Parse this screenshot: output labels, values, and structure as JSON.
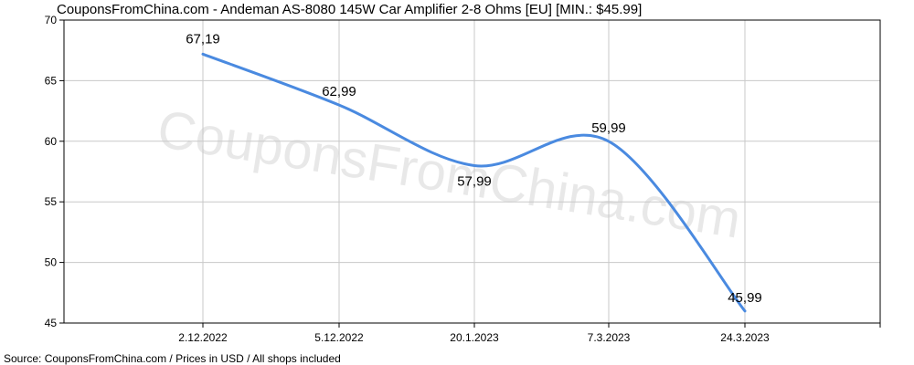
{
  "chart_data": {
    "type": "line",
    "title": "CouponsFromChina.com - Andeman AS-8080 145W Car Amplifier 2-8 Ohms [EU] [MIN.: $45.99]",
    "xlabel": "",
    "ylabel": "",
    "x_ticks": [
      "2.12.2022",
      "5.12.2022",
      "20.1.2023",
      "7.3.2023",
      "24.3.2023"
    ],
    "ylim": [
      45,
      70
    ],
    "y_ticks": [
      45,
      50,
      55,
      60,
      65,
      70
    ],
    "grid": true,
    "legend": "none",
    "line_color": "#4a8ae0",
    "series": [
      {
        "points": [
          {
            "x": "2.12.2022",
            "y": 67.19,
            "label": "67,19"
          },
          {
            "x": "5.12.2022",
            "y": 62.99,
            "label": "62,99"
          },
          {
            "x": "20.1.2023",
            "y": 57.99,
            "label": "57,99"
          },
          {
            "x": "7.3.2023",
            "y": 59.99,
            "label": "59,99"
          },
          {
            "x": "24.3.2023",
            "y": 45.99,
            "label": "45,99"
          }
        ]
      }
    ],
    "watermark": "CouponsFromChina.com",
    "source": "Source: CouponsFromChina.com / Prices in USD / All shops included"
  }
}
